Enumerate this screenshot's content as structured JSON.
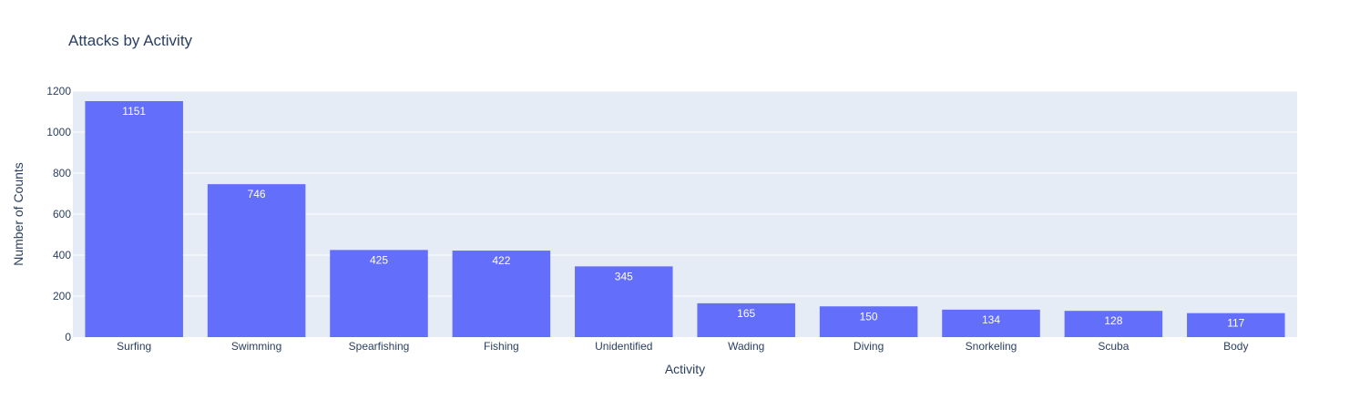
{
  "chart_data": {
    "type": "bar",
    "title": "Attacks by Activity",
    "xlabel": "Activity",
    "ylabel": "Number of Counts",
    "categories": [
      "Surfing",
      "Swimming",
      "Spearfishing",
      "Fishing",
      "Unidentified",
      "Wading",
      "Diving",
      "Snorkeling",
      "Scuba",
      "Body"
    ],
    "values": [
      1151,
      746,
      425,
      422,
      345,
      165,
      150,
      134,
      128,
      117
    ],
    "ylim": [
      0,
      1200
    ],
    "yticks": [
      0,
      200,
      400,
      600,
      800,
      1000,
      1200
    ],
    "grid": true,
    "legend": "none",
    "colors": {
      "bar": "#636efa",
      "plot_background": "#e5ecf6",
      "grid": "#ffffff",
      "text": "#2a3f5f",
      "bar_label": "#ffffff"
    }
  }
}
